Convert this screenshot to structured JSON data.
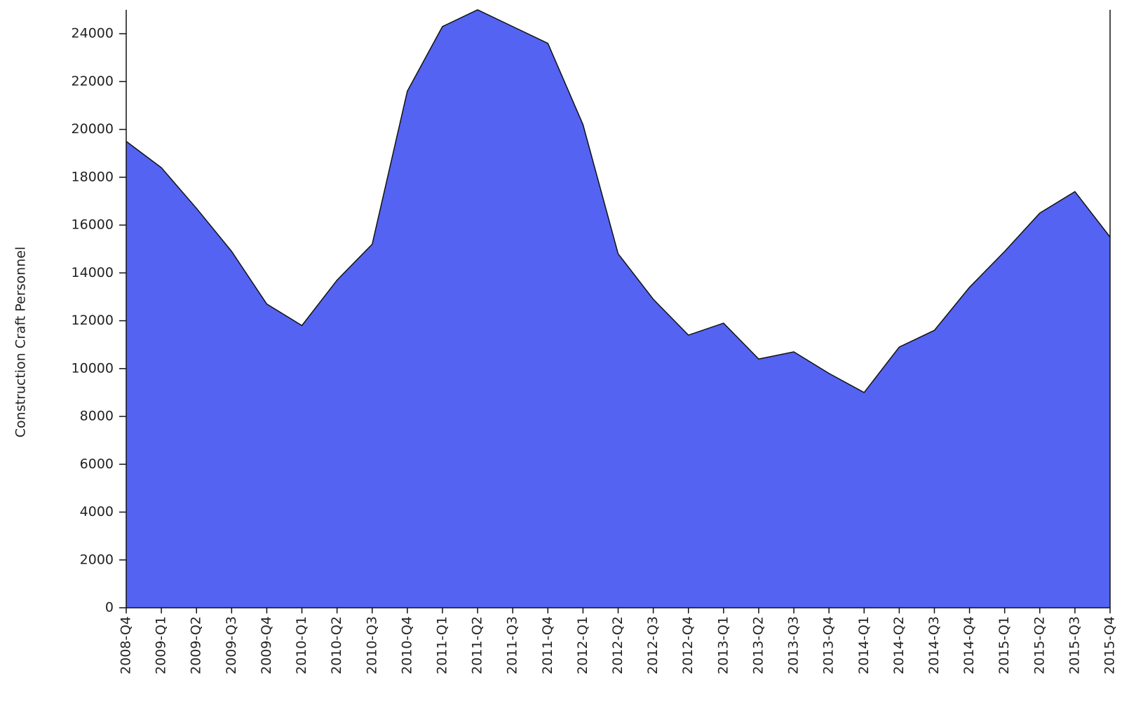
{
  "chart_data": {
    "type": "area",
    "y_label": "Construction Craft Personnel",
    "categories": [
      "2008-Q4",
      "2009-Q1",
      "2009-Q2",
      "2009-Q3",
      "2009-Q4",
      "2010-Q1",
      "2010-Q2",
      "2010-Q3",
      "2010-Q4",
      "2011-Q1",
      "2011-Q2",
      "2011-Q3",
      "2011-Q4",
      "2012-Q1",
      "2012-Q2",
      "2012-Q3",
      "2012-Q4",
      "2013-Q1",
      "2013-Q2",
      "2013-Q3",
      "2013-Q4",
      "2014-Q1",
      "2014-Q2",
      "2014-Q3",
      "2014-Q4",
      "2015-Q1",
      "2015-Q2",
      "2015-Q3",
      "2015-Q4"
    ],
    "values": [
      19500,
      18400,
      16700,
      14900,
      12700,
      11800,
      13700,
      15200,
      21600,
      24300,
      25000,
      24300,
      23600,
      20200,
      14800,
      12900,
      11400,
      11900,
      10400,
      10700,
      9800,
      9000,
      10900,
      11600,
      13400,
      14900,
      16500,
      17400,
      15500
    ],
    "color": "#5463f2",
    "ylim": [
      0,
      25000
    ],
    "yticks": [
      0,
      2000,
      4000,
      6000,
      8000,
      10000,
      12000,
      14000,
      16000,
      18000,
      20000,
      22000,
      24000
    ]
  }
}
